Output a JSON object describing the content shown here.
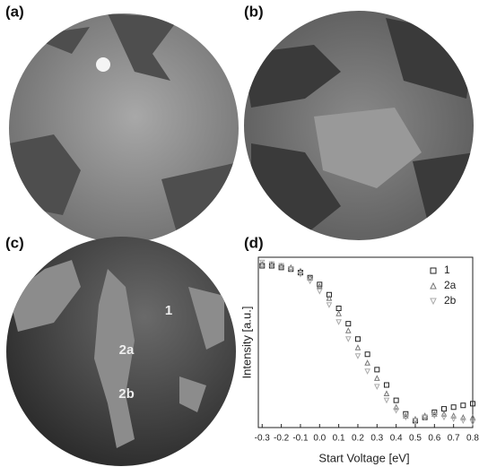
{
  "panels": [
    {
      "label": "(a)"
    },
    {
      "label": "(b)"
    },
    {
      "label": "(c)"
    },
    {
      "label": "(d)"
    }
  ],
  "image_labels": [
    "1",
    "2a",
    "2b"
  ],
  "chart_data": {
    "type": "scatter",
    "xlabel": "Start Voltage [eV]",
    "ylabel": "Intensity [a.u.]",
    "x": [
      -0.3,
      -0.25,
      -0.2,
      -0.15,
      -0.1,
      -0.05,
      0,
      0.05,
      0.1,
      0.15,
      0.2,
      0.25,
      0.3,
      0.35,
      0.4,
      0.45,
      0.5,
      0.55,
      0.6,
      0.65,
      0.7,
      0.75,
      0.8
    ],
    "series": [
      {
        "name": "1",
        "color": "#222222",
        "marker": "square",
        "values": [
          0.95,
          0.95,
          0.94,
          0.93,
          0.91,
          0.88,
          0.84,
          0.78,
          0.7,
          0.61,
          0.52,
          0.43,
          0.34,
          0.25,
          0.16,
          0.08,
          0.04,
          0.06,
          0.09,
          0.11,
          0.12,
          0.13,
          0.14
        ]
      },
      {
        "name": "2a",
        "color": "#777777",
        "marker": "triangle-up",
        "values": [
          0.96,
          0.96,
          0.95,
          0.94,
          0.92,
          0.88,
          0.83,
          0.76,
          0.67,
          0.57,
          0.47,
          0.38,
          0.29,
          0.2,
          0.12,
          0.07,
          0.05,
          0.07,
          0.08,
          0.08,
          0.07,
          0.06,
          0.06
        ]
      },
      {
        "name": "2b",
        "color": "#aaaaaa",
        "marker": "triangle-down",
        "values": [
          0.97,
          0.96,
          0.95,
          0.93,
          0.9,
          0.86,
          0.8,
          0.72,
          0.62,
          0.52,
          0.42,
          0.33,
          0.24,
          0.16,
          0.1,
          0.06,
          0.04,
          0.06,
          0.07,
          0.06,
          0.05,
          0.04,
          0.03
        ]
      }
    ],
    "xlim": [
      -0.32,
      0.8
    ],
    "ylim": [
      0,
      1
    ],
    "xticks": [
      -0.3,
      -0.2,
      -0.1,
      {
        "value": 0,
        "label": "0.0"
      },
      0.1,
      0.2,
      0.3,
      0.4,
      0.5,
      0.6,
      0.7,
      0.8
    ],
    "legend": "upper right"
  }
}
